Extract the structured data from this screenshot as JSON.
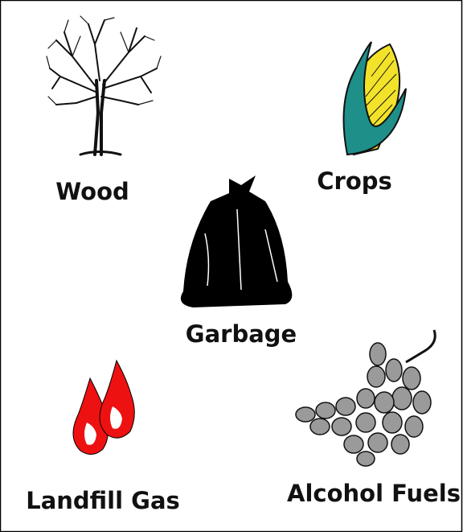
{
  "items": [
    {
      "label": "Wood"
    },
    {
      "label": "Crops"
    },
    {
      "label": "Garbage"
    },
    {
      "label": "Landfill Gas"
    },
    {
      "label": "Alcohol Fuels"
    }
  ]
}
